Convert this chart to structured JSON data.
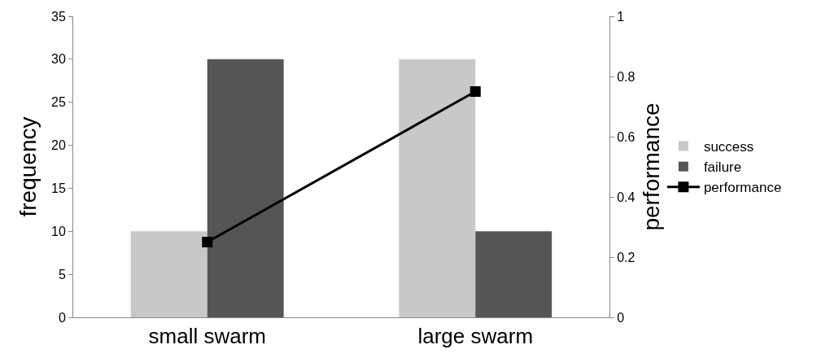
{
  "chart_data": {
    "type": "bar",
    "xlabel": null,
    "ylabel": "frequency",
    "y2label": "performance",
    "categories": [
      "small swarm",
      "large swarm"
    ],
    "series": [
      {
        "name": "success",
        "color": "#c8c8c8",
        "values": [
          10,
          30
        ]
      },
      {
        "name": "failure",
        "color": "#555555",
        "values": [
          30,
          10
        ]
      },
      {
        "name": "performance",
        "type": "line",
        "axis": "y2",
        "color": "#000000",
        "marker": "square",
        "values": [
          0.25,
          0.75
        ]
      }
    ],
    "ylim": [
      0,
      35
    ],
    "yticks": [
      0,
      5,
      10,
      15,
      20,
      25,
      30,
      35
    ],
    "y2lim": [
      0,
      1
    ],
    "y2ticks": [
      0,
      0.2,
      0.4,
      0.6,
      0.8,
      1
    ],
    "grid": false,
    "legend": "right"
  }
}
